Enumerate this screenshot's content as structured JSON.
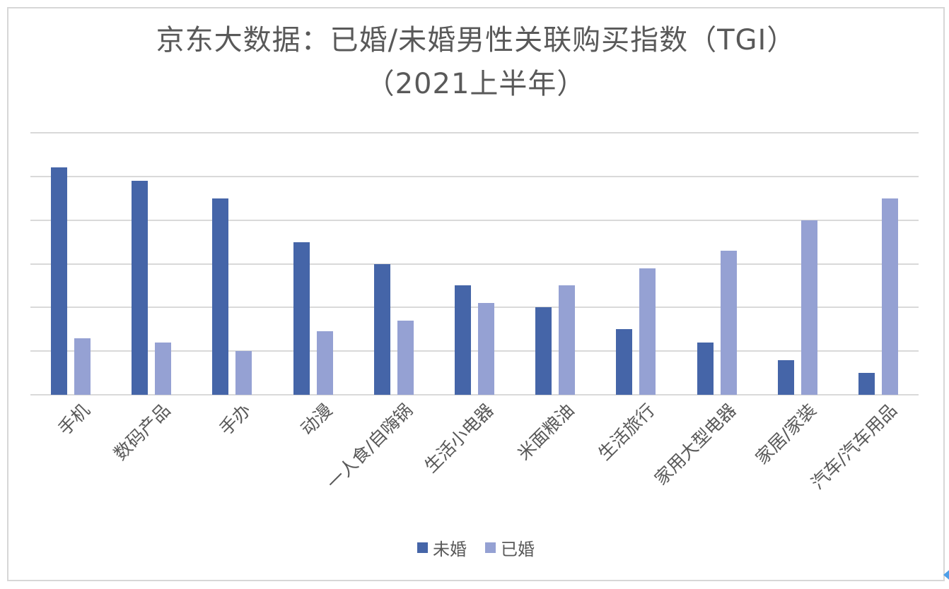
{
  "chart_data": {
    "type": "bar",
    "title": "京东大数据：已婚/未婚男性关联购买指数（TGI）",
    "subtitle": "（2021上半年）",
    "categories": [
      "手机",
      "数码产品",
      "手办",
      "动漫",
      "一人食/自嗨锅",
      "生活小电器",
      "米面粮油",
      "生活旅行",
      "家用大型电器",
      "家居/家装",
      "汽车/汽车用品"
    ],
    "series": [
      {
        "name": "未婚",
        "color": "#4565A8",
        "values": [
          104,
          98,
          90,
          70,
          60,
          50,
          40,
          30,
          24,
          16,
          10
        ]
      },
      {
        "name": "已婚",
        "color": "#95A1D3",
        "values": [
          26,
          24,
          20,
          29,
          34,
          42,
          50,
          58,
          66,
          80,
          90
        ]
      }
    ],
    "ylim": [
      0,
      120
    ],
    "gridline_step": 20,
    "grid": "horizontal",
    "y_axis_labels_visible": false,
    "x_label_rotation_deg": -45,
    "legend_position": "bottom"
  },
  "colors": {
    "gridline": "#D9D9D9",
    "panel_border": "#D7D7D7",
    "text": "#595959",
    "scroll_arrow": "#4E9FE8"
  },
  "icons": {
    "scroll_arrow": "left-triangle-arrow"
  }
}
